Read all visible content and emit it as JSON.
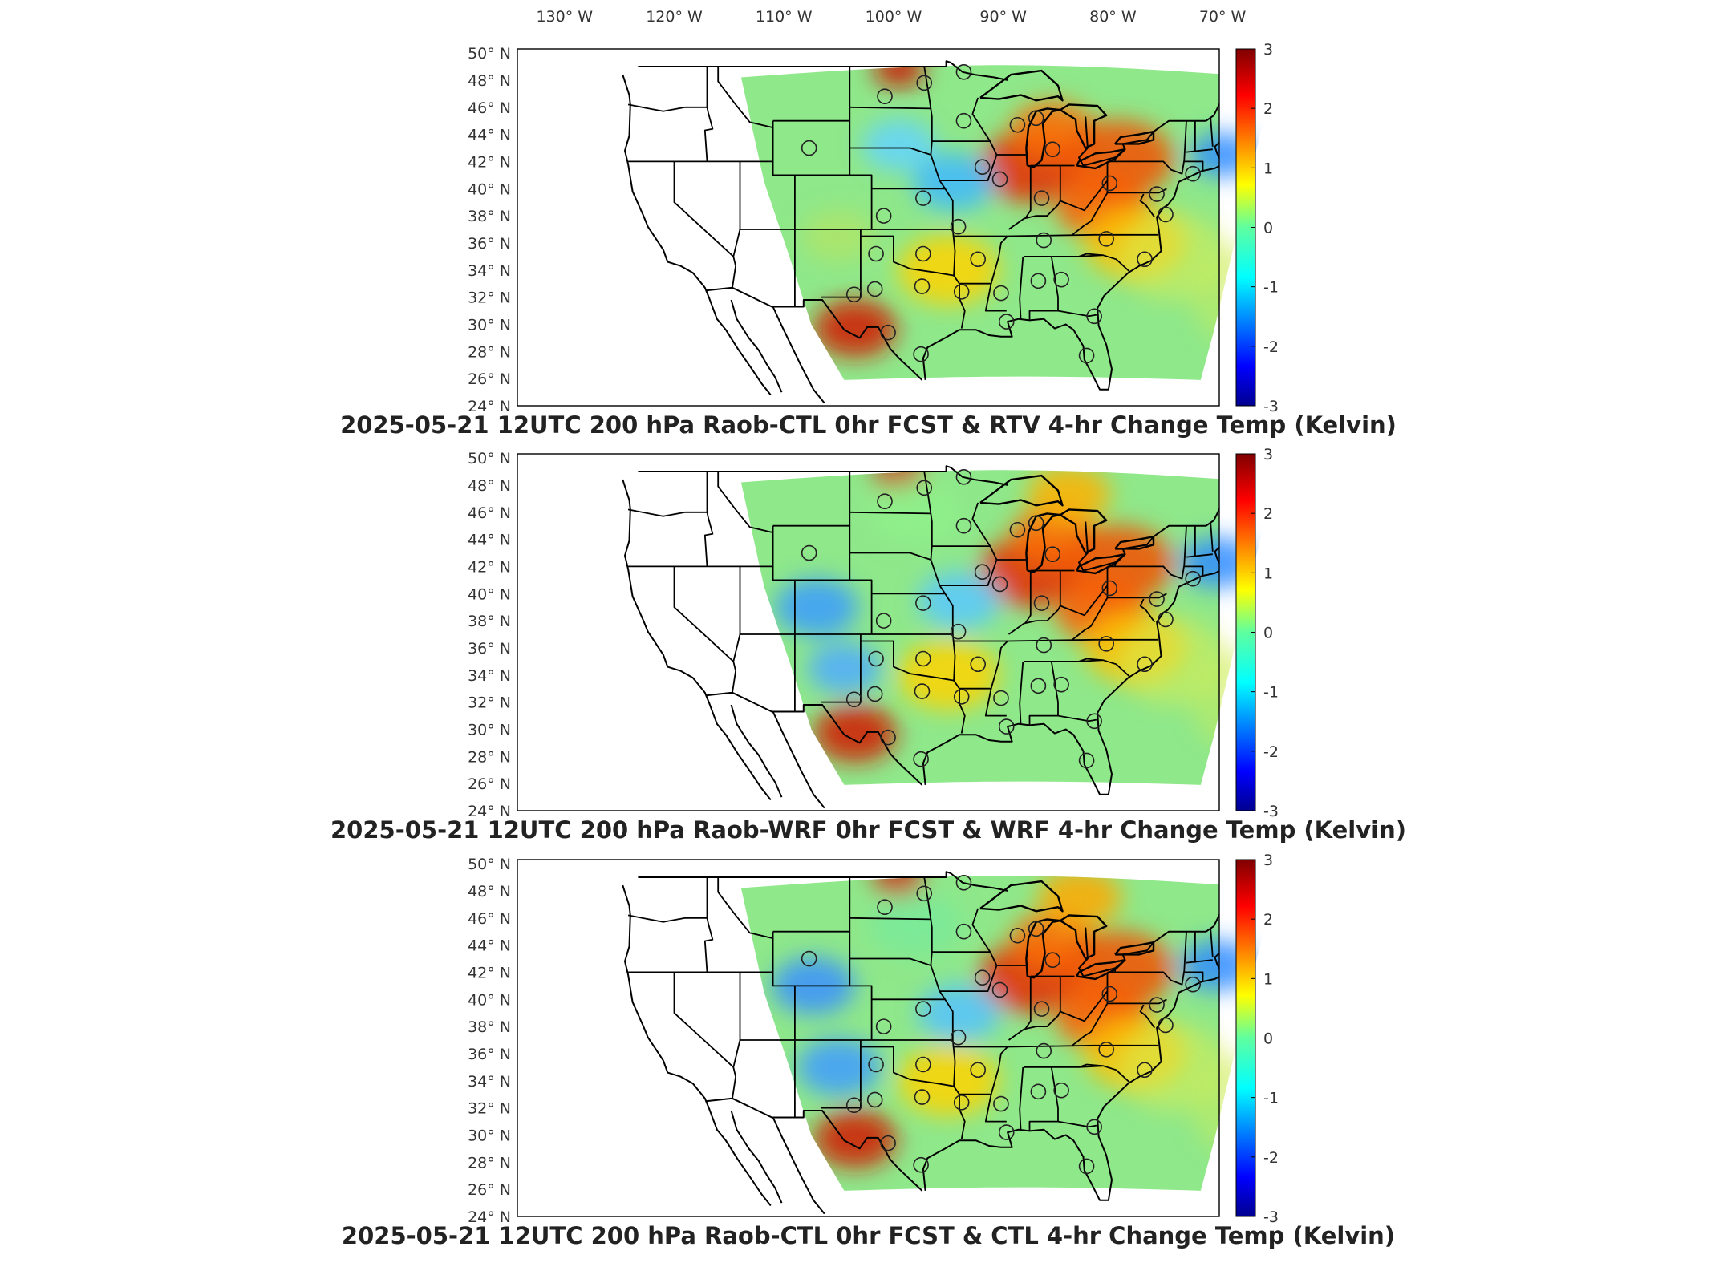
{
  "figure": {
    "top_lon_labels": [
      "130° W",
      "120° W",
      "110° W",
      "100° W",
      "90° W",
      "80° W",
      "70° W"
    ],
    "lat_labels": [
      "50° N",
      "48° N",
      "46° N",
      "44° N",
      "42° N",
      "40° N",
      "38° N",
      "36° N",
      "34° N",
      "32° N",
      "30° N",
      "28° N",
      "26° N",
      "24° N"
    ],
    "colorbar": {
      "ticks": [
        "3",
        "2",
        "1",
        "0",
        "-1",
        "-2",
        "-3"
      ],
      "min": -3,
      "max": 3,
      "cmap": "jet",
      "units": "Kelvin"
    }
  },
  "panels": [
    {
      "title": "2025-05-21 12UTC 200 hPa Raob-CTL 0hr FCST & RTV 4-hr Change Temp (Kelvin)",
      "field": "RTV 4-hr Change Temp",
      "warm_regions": [
        "Great Lakes",
        "Ohio Valley",
        "Pennsylvania",
        "West Texas",
        "Northern Plains"
      ],
      "cool_regions": [
        "Kansas",
        "Iowa",
        "New England coast"
      ]
    },
    {
      "title": "2025-05-21 12UTC 200 hPa Raob-WRF 0hr FCST & WRF 4-hr Change Temp (Kelvin)",
      "field": "WRF 4-hr Change Temp",
      "warm_regions": [
        "Great Lakes",
        "Ohio Valley",
        "Pennsylvania",
        "West Texas",
        "Northern Plains"
      ],
      "cool_regions": [
        "Colorado",
        "New Mexico",
        "Kansas",
        "Iowa",
        "New England coast"
      ]
    },
    {
      "title": "2025-05-21 12UTC 200 hPa Raob-CTL 0hr FCST & CTL 4-hr Change Temp (Kelvin)",
      "field": "CTL 4-hr Change Temp",
      "warm_regions": [
        "Great Lakes",
        "Ohio Valley",
        "Pennsylvania",
        "West Texas",
        "Northern Plains"
      ],
      "cool_regions": [
        "Colorado",
        "New Mexico",
        "Kansas",
        "Iowa",
        "New England coast"
      ]
    }
  ],
  "raob_stations": [
    {
      "lon": -97.2,
      "lat": 47.8
    },
    {
      "lon": -100.8,
      "lat": 46.8
    },
    {
      "lon": -93.6,
      "lat": 48.6
    },
    {
      "lon": -107.7,
      "lat": 43.0
    },
    {
      "lon": -93.6,
      "lat": 45.0
    },
    {
      "lon": -88.7,
      "lat": 44.7
    },
    {
      "lon": -87.0,
      "lat": 45.2
    },
    {
      "lon": -85.5,
      "lat": 42.9
    },
    {
      "lon": -91.9,
      "lat": 41.6
    },
    {
      "lon": -90.3,
      "lat": 40.7
    },
    {
      "lon": -86.5,
      "lat": 39.3
    },
    {
      "lon": -80.3,
      "lat": 40.4
    },
    {
      "lon": -76.0,
      "lat": 39.6
    },
    {
      "lon": -72.7,
      "lat": 41.1
    },
    {
      "lon": -75.2,
      "lat": 38.1
    },
    {
      "lon": -100.9,
      "lat": 38.0
    },
    {
      "lon": -97.3,
      "lat": 39.3
    },
    {
      "lon": -94.1,
      "lat": 37.2
    },
    {
      "lon": -101.6,
      "lat": 35.2
    },
    {
      "lon": -97.3,
      "lat": 35.2
    },
    {
      "lon": -92.3,
      "lat": 34.8
    },
    {
      "lon": -86.3,
      "lat": 36.2
    },
    {
      "lon": -80.6,
      "lat": 36.3
    },
    {
      "lon": -77.1,
      "lat": 34.8
    },
    {
      "lon": -103.6,
      "lat": 32.2
    },
    {
      "lon": -101.7,
      "lat": 32.6
    },
    {
      "lon": -97.4,
      "lat": 32.8
    },
    {
      "lon": -93.8,
      "lat": 32.4
    },
    {
      "lon": -90.2,
      "lat": 32.3
    },
    {
      "lon": -86.8,
      "lat": 33.2
    },
    {
      "lon": -84.7,
      "lat": 33.3
    },
    {
      "lon": -89.7,
      "lat": 30.2
    },
    {
      "lon": -81.7,
      "lat": 30.6
    },
    {
      "lon": -100.5,
      "lat": 29.4
    },
    {
      "lon": -97.5,
      "lat": 27.8
    },
    {
      "lon": -82.4,
      "lat": 27.7
    }
  ]
}
